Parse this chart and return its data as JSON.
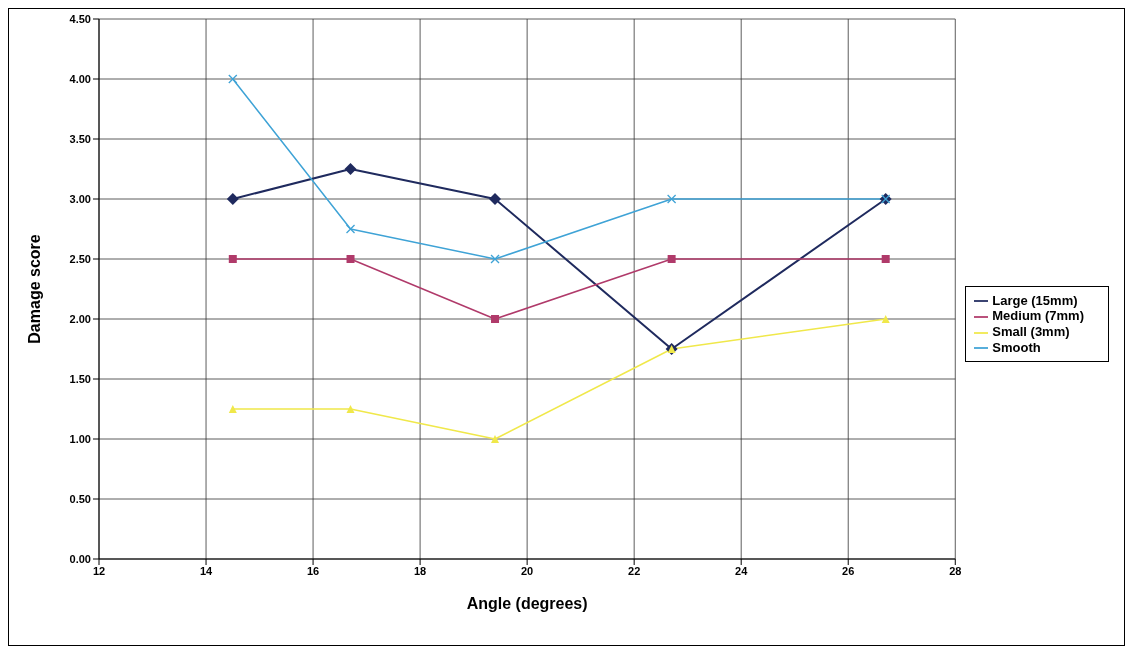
{
  "chart_data": {
    "type": "line",
    "xlabel": "Angle (degrees)",
    "ylabel": "Damage score",
    "x": [
      14.5,
      16.7,
      19.4,
      22.7,
      26.7
    ],
    "series": [
      {
        "name": "Large (15mm)",
        "color": "#1f2a5e",
        "values": [
          3.0,
          3.25,
          3.0,
          1.75,
          3.0
        ],
        "marker": "diamond"
      },
      {
        "name": "Medium (7mm)",
        "color": "#b03a6a",
        "values": [
          2.5,
          2.5,
          2.0,
          2.5,
          2.5
        ],
        "marker": "square"
      },
      {
        "name": "Small (3mm)",
        "color": "#f0e84a",
        "values": [
          1.25,
          1.25,
          1.0,
          1.75,
          2.0
        ],
        "marker": "triangle"
      },
      {
        "name": "Smooth",
        "color": "#3fa3d6",
        "values": [
          4.0,
          2.75,
          2.5,
          3.0,
          3.0
        ],
        "marker": "cross"
      }
    ],
    "xlim": [
      12,
      28
    ],
    "xticks": [
      12,
      14,
      16,
      18,
      20,
      22,
      24,
      26,
      28
    ],
    "ylim": [
      0,
      4.5
    ],
    "yticks": [
      {
        "value": 0,
        "label": "0.00"
      },
      {
        "value": 0.5,
        "label": "0.50"
      },
      {
        "value": 1,
        "label": "1.00"
      },
      {
        "value": 1.5,
        "label": "1.50"
      },
      {
        "value": 2,
        "label": "2.00"
      },
      {
        "value": 2.5,
        "label": "2.50"
      },
      {
        "value": 3,
        "label": "3.00"
      },
      {
        "value": 3.5,
        "label": "3.50"
      },
      {
        "value": 4,
        "label": "4.00"
      },
      {
        "value": 4.5,
        "label": "4.50"
      }
    ],
    "grid": true,
    "legend": "right",
    "line_style": "solid"
  }
}
